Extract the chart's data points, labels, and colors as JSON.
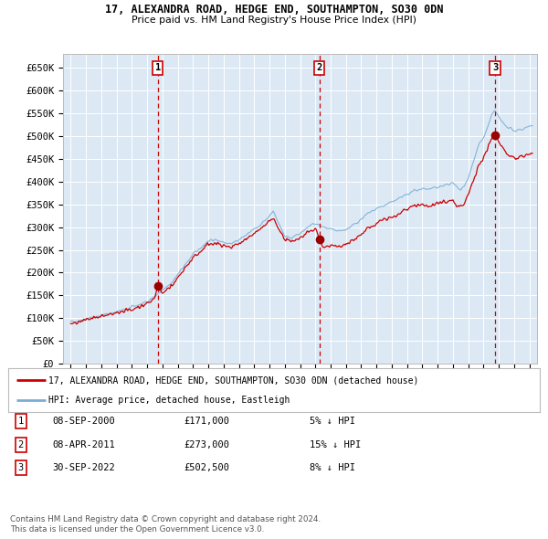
{
  "title": "17, ALEXANDRA ROAD, HEDGE END, SOUTHAMPTON, SO30 0DN",
  "subtitle": "Price paid vs. HM Land Registry's House Price Index (HPI)",
  "background_color": "#ffffff",
  "plot_bg_color": "#dce9f5",
  "grid_color": "#ffffff",
  "ylim": [
    0,
    680000
  ],
  "yticks": [
    0,
    50000,
    100000,
    150000,
    200000,
    250000,
    300000,
    350000,
    400000,
    450000,
    500000,
    550000,
    600000,
    650000
  ],
  "ytick_labels": [
    "£0",
    "£50K",
    "£100K",
    "£150K",
    "£200K",
    "£250K",
    "£300K",
    "£350K",
    "£400K",
    "£450K",
    "£500K",
    "£550K",
    "£600K",
    "£650K"
  ],
  "hpi_color": "#7badd4",
  "price_color": "#cc0000",
  "marker_color": "#990000",
  "dashed_color": "#cc0000",
  "transactions": [
    {
      "num": 1,
      "date_x": 2000.69,
      "price": 171000,
      "label": "08-SEP-2000",
      "price_label": "£171,000",
      "hpi_note": "5% ↓ HPI"
    },
    {
      "num": 2,
      "date_x": 2011.27,
      "price": 273000,
      "label": "08-APR-2011",
      "price_label": "£273,000",
      "hpi_note": "15% ↓ HPI"
    },
    {
      "num": 3,
      "date_x": 2022.75,
      "price": 502500,
      "label": "30-SEP-2022",
      "price_label": "£502,500",
      "hpi_note": "8% ↓ HPI"
    }
  ],
  "legend_line1": "17, ALEXANDRA ROAD, HEDGE END, SOUTHAMPTON, SO30 0DN (detached house)",
  "legend_line2": "HPI: Average price, detached house, Eastleigh",
  "footer1": "Contains HM Land Registry data © Crown copyright and database right 2024.",
  "footer2": "This data is licensed under the Open Government Licence v3.0.",
  "xlim_start": 1994.5,
  "xlim_end": 2025.5
}
